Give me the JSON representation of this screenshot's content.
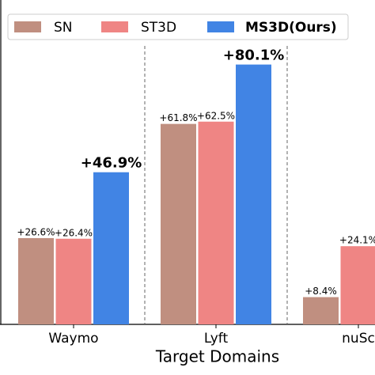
{
  "chart_data": {
    "type": "bar",
    "x_label": "Target Domains",
    "categories": [
      "Waymo",
      "Lyft",
      "nuSc"
    ],
    "series": [
      {
        "name": "SN",
        "color": "#c08f80",
        "values": [
          26.6,
          61.8,
          8.4
        ],
        "value_labels": [
          "+26.6%",
          "+61.8%",
          "+8.4%"
        ]
      },
      {
        "name": "ST3D",
        "color": "#ef8584",
        "values": [
          26.4,
          62.5,
          24.1
        ],
        "value_labels": [
          "+26.4%",
          "+62.5%",
          "+24.1%"
        ]
      },
      {
        "name": "MS3D(Ours)",
        "color": "#4184e4",
        "values": [
          46.9,
          80.1,
          null
        ],
        "value_labels": [
          "+46.9%",
          "+80.1%",
          null
        ]
      }
    ],
    "ylim": [
      0,
      100
    ]
  }
}
